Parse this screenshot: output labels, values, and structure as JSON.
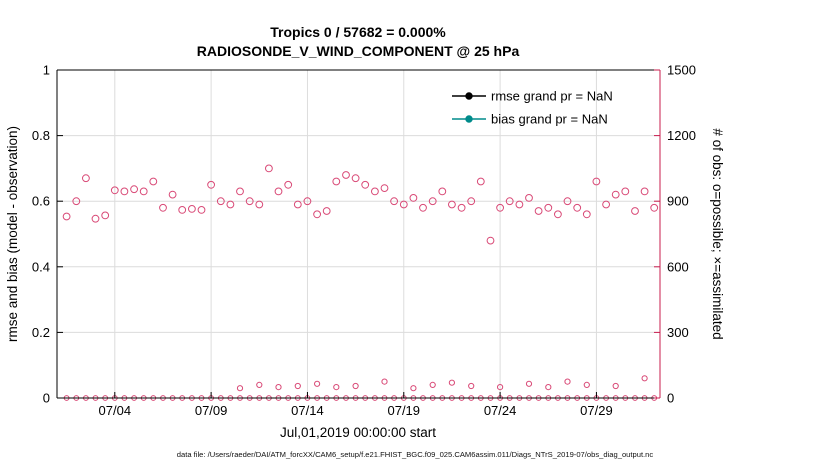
{
  "caption": "data file: /Users/raeder/DAI/ATM_forcXX/CAM6_setup/f.e21.FHIST_BGC.f09_025.CAM6assim.011/Diags_NTrS_2019-07/obs_diag_output.nc",
  "colors": {
    "obs_marker": "#d94a77",
    "right_axis": "#c81e4e",
    "legend_text": "#0000ee",
    "grid": "#dcdcdc",
    "rmse": "#000000",
    "bias": "#008b8b"
  },
  "chart_data": {
    "type": "scatter",
    "title_line1": "Tropics 0 / 57682 = 0.000%",
    "title_line2": "RADIOSONDE_V_WIND_COMPONENT @ 25 hPa",
    "xlabel": "Jul,01,2019 00:00:00 start",
    "ylabel_left": "rmse and bias (model - observation)",
    "ylabel_right": "# of obs: o=possible; ×=assimilated",
    "ylim_left": [
      0,
      1
    ],
    "ylim_right": [
      0,
      1500
    ],
    "xlim_days": [
      1.0,
      32.3
    ],
    "grid": true,
    "yticks_left": [
      "0",
      "0.2",
      "0.4",
      "0.6",
      "0.8",
      "1"
    ],
    "yticks_right": [
      "0",
      "300",
      "600",
      "900",
      "1200",
      "1500"
    ],
    "xticks": [
      {
        "day": 4,
        "label": "07/04"
      },
      {
        "day": 9,
        "label": "07/09"
      },
      {
        "day": 14,
        "label": "07/14"
      },
      {
        "day": 19,
        "label": "07/19"
      },
      {
        "day": 24,
        "label": "07/24"
      },
      {
        "day": 29,
        "label": "07/29"
      }
    ],
    "legend": [
      {
        "label": "rmse grand pr = NaN",
        "color": "#000000"
      },
      {
        "label": "bias grand pr = NaN",
        "color": "#008b8b"
      }
    ],
    "series": [
      {
        "name": "possible_obs",
        "marker": "open-circle",
        "axis": "right",
        "x": [
          1.5,
          2,
          2.5,
          3,
          3.5,
          4,
          4.5,
          5,
          5.5,
          6,
          6.5,
          7,
          7.5,
          8,
          8.5,
          9,
          9.5,
          10,
          10.5,
          11,
          11.5,
          12,
          12.5,
          13,
          13.5,
          14,
          14.5,
          15,
          15.5,
          16,
          16.5,
          17,
          17.5,
          18,
          18.5,
          19,
          19.5,
          20,
          20.5,
          21,
          21.5,
          22,
          22.5,
          23,
          23.5,
          24,
          24.5,
          25,
          25.5,
          26,
          26.5,
          27,
          27.5,
          28,
          28.5,
          29,
          29.5,
          30,
          30.5,
          31,
          31.5,
          32
        ],
        "values": [
          830,
          900,
          1005,
          820,
          835,
          950,
          945,
          955,
          945,
          990,
          870,
          930,
          860,
          865,
          860,
          975,
          900,
          885,
          945,
          900,
          885,
          1050,
          945,
          975,
          885,
          900,
          840,
          855,
          990,
          1020,
          1005,
          975,
          945,
          960,
          900,
          885,
          915,
          870,
          900,
          945,
          885,
          870,
          900,
          990,
          720,
          870,
          900,
          885,
          915,
          855,
          870,
          840,
          900,
          870,
          840,
          990,
          885,
          930,
          945,
          855,
          945,
          870
        ]
      },
      {
        "name": "assimilated_obs",
        "marker": "open-circle",
        "axis": "right",
        "x": [
          1.5,
          2,
          2.5,
          3,
          3.5,
          4,
          4.5,
          5,
          5.5,
          6,
          6.5,
          7,
          7.5,
          8,
          8.5,
          9,
          9.5,
          10,
          10.5,
          11,
          11.5,
          12,
          12.5,
          13,
          13.5,
          14,
          14.5,
          15,
          15.5,
          16,
          16.5,
          17,
          17.5,
          18,
          18.5,
          19,
          19.5,
          20,
          20.5,
          21,
          21.5,
          22,
          22.5,
          23,
          23.5,
          24,
          24.5,
          25,
          25.5,
          26,
          26.5,
          27,
          27.5,
          28,
          28.5,
          29,
          29.5,
          30,
          30.5,
          31,
          31.5,
          32
        ],
        "values": [
          0,
          0,
          0,
          0,
          0,
          0,
          0,
          0,
          0,
          0,
          0,
          0,
          0,
          0,
          0,
          0,
          0,
          0,
          0,
          0,
          0,
          0,
          0,
          0,
          0,
          0,
          0,
          0,
          0,
          0,
          0,
          0,
          0,
          0,
          0,
          0,
          0,
          0,
          0,
          0,
          0,
          0,
          0,
          0,
          0,
          0,
          0,
          0,
          0,
          0,
          0,
          0,
          0,
          0,
          0,
          0,
          0,
          0,
          0,
          0,
          0,
          0
        ]
      },
      {
        "name": "possible_obs_low",
        "marker": "open-circle",
        "axis": "right",
        "x": [
          10.5,
          11.5,
          12.5,
          13.5,
          14.5,
          15.5,
          16.5,
          18,
          19.5,
          20.5,
          21.5,
          22.5,
          24,
          25.5,
          26.5,
          27.5,
          28.5,
          30,
          31.5
        ],
        "values": [
          45,
          60,
          50,
          55,
          65,
          50,
          55,
          75,
          45,
          60,
          70,
          55,
          50,
          65,
          50,
          75,
          60,
          55,
          90
        ]
      }
    ]
  }
}
